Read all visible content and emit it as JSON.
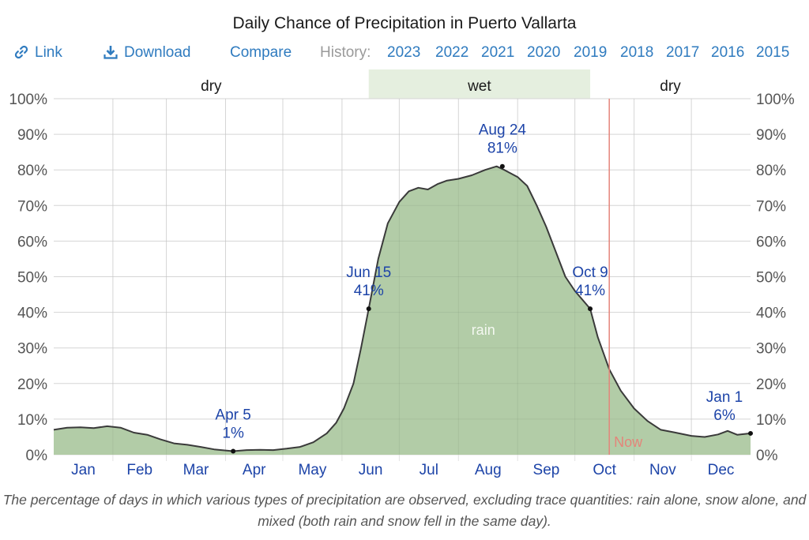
{
  "header": {
    "title": "Daily Chance of Precipitation in Puerto Vallarta"
  },
  "toolbar": {
    "link_label": "Link",
    "link_icon": "link-icon",
    "download_label": "Download",
    "download_icon": "download-icon",
    "compare_label": "Compare",
    "history_label": "History:",
    "years": [
      "2023",
      "2022",
      "2021",
      "2020",
      "2019",
      "2018",
      "2017",
      "2016",
      "2015"
    ]
  },
  "caption": "The percentage of days in which various types of precipitation are observed, excluding trace quantities: rain alone, snow alone, and mixed (both rain and snow fell in the same day).",
  "colors": {
    "link": "#2f7bbf",
    "rain_fill": "#b2cca7",
    "curve": "#3a3a3a",
    "wet_band": "#e5efdf",
    "now_line": "#e4857a",
    "annotation": "#1d44a8",
    "month_label": "#1d44a8",
    "grid": "#e3e3e3"
  },
  "chart_data": {
    "type": "area",
    "title": "Daily Chance of Precipitation in Puerto Vallarta",
    "xlabel": "",
    "ylabel": "",
    "ylim": [
      0,
      100
    ],
    "xlim_days": [
      0,
      365
    ],
    "y_ticks": [
      "0%",
      "10%",
      "20%",
      "30%",
      "40%",
      "50%",
      "60%",
      "70%",
      "80%",
      "90%",
      "100%"
    ],
    "y_tick_values": [
      0,
      10,
      20,
      30,
      40,
      50,
      60,
      70,
      80,
      90,
      100
    ],
    "months": [
      "Jan",
      "Feb",
      "Mar",
      "Apr",
      "May",
      "Jun",
      "Jul",
      "Aug",
      "Sep",
      "Oct",
      "Nov",
      "Dec"
    ],
    "month_start_days": [
      0,
      31,
      59,
      90,
      120,
      151,
      181,
      212,
      243,
      273,
      304,
      334
    ],
    "grid": true,
    "seasons": [
      {
        "label": "dry",
        "start_day": 0,
        "end_day": 165,
        "highlight": false
      },
      {
        "label": "wet",
        "start_day": 165,
        "end_day": 281,
        "highlight": true
      },
      {
        "label": "dry",
        "start_day": 281,
        "end_day": 365,
        "highlight": false
      }
    ],
    "series": [
      {
        "name": "rain",
        "label_day": 225,
        "label_value": 35,
        "days": [
          0,
          7,
          14,
          21,
          28,
          35,
          42,
          49,
          56,
          63,
          70,
          77,
          84,
          94,
          101,
          108,
          115,
          122,
          129,
          136,
          143,
          148,
          152,
          157,
          161,
          165,
          170,
          175,
          181,
          186,
          191,
          196,
          201,
          206,
          212,
          219,
          226,
          232,
          236,
          243,
          248,
          253,
          258,
          263,
          268,
          273,
          281,
          285,
          291,
          297,
          304,
          311,
          318,
          325,
          334,
          341,
          348,
          353,
          358,
          365
        ],
        "values": [
          7.0,
          7.6,
          7.7,
          7.5,
          8.0,
          7.6,
          6.2,
          5.6,
          4.3,
          3.2,
          2.8,
          2.2,
          1.5,
          1.0,
          1.3,
          1.4,
          1.3,
          1.7,
          2.2,
          3.5,
          6.0,
          9.0,
          13.0,
          20.0,
          30.0,
          41.0,
          55.0,
          65.0,
          71.0,
          74.0,
          75.0,
          74.5,
          76.0,
          77.0,
          77.5,
          78.5,
          80.0,
          81.0,
          80.0,
          78.0,
          75.5,
          70.0,
          64.0,
          57.0,
          50.0,
          46.0,
          41.0,
          33.0,
          24.0,
          18.0,
          13.0,
          9.5,
          7.0,
          6.3,
          5.3,
          5.0,
          5.7,
          6.7,
          5.6,
          6.0
        ]
      }
    ],
    "annotations": [
      {
        "label": "Apr 5",
        "value_label": "1%",
        "day": 94,
        "value": 1
      },
      {
        "label": "Jun 15",
        "value_label": "41%",
        "day": 165,
        "value": 41
      },
      {
        "label": "Aug 24",
        "value_label": "81%",
        "day": 235,
        "value": 81
      },
      {
        "label": "Oct 9",
        "value_label": "41%",
        "day": 281,
        "value": 41
      },
      {
        "label": "Jan 1",
        "value_label": "6%",
        "day": 365,
        "value": 6
      }
    ],
    "now_marker": {
      "label": "Now",
      "day": 291
    }
  }
}
